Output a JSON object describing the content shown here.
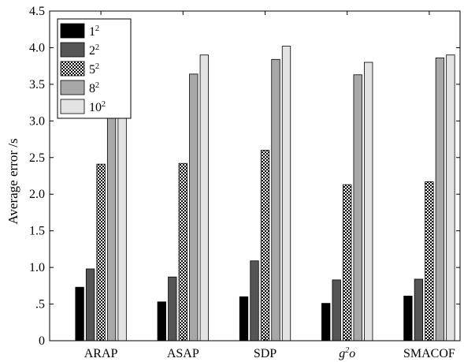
{
  "chart_data": {
    "type": "bar",
    "categories": [
      "ARAP",
      "ASAP",
      "SDP",
      "g²o",
      "SMACOF"
    ],
    "series": [
      {
        "name": "1²",
        "values": [
          0.73,
          0.53,
          0.6,
          0.51,
          0.61
        ],
        "color": "#000000",
        "pattern": "solid"
      },
      {
        "name": "2²",
        "values": [
          0.98,
          0.87,
          1.09,
          0.83,
          0.84
        ],
        "color": "#555555",
        "pattern": "solid"
      },
      {
        "name": "5²",
        "values": [
          2.41,
          2.42,
          2.6,
          2.13,
          2.17
        ],
        "color": "#ffffff",
        "pattern": "checker"
      },
      {
        "name": "8²",
        "values": [
          3.43,
          3.64,
          3.84,
          3.63,
          3.86
        ],
        "color": "#a8a8a8",
        "pattern": "solid"
      },
      {
        "name": "10²",
        "values": [
          3.81,
          3.9,
          4.02,
          3.8,
          3.9
        ],
        "color": "#e3e3e3",
        "pattern": "solid"
      }
    ],
    "title": "",
    "xlabel": "",
    "ylabel": "Average error /s",
    "ylim": [
      0,
      4.5
    ],
    "yticks": [
      "0",
      ".5",
      "1.0",
      "1.5",
      "2.0",
      "2.5",
      "3.0",
      "3.5",
      "4.0",
      "4.5"
    ],
    "ytick_values": [
      0,
      0.5,
      1.0,
      1.5,
      2.0,
      2.5,
      3.0,
      3.5,
      4.0,
      4.5
    ],
    "grid": false,
    "legend_position": "top-left"
  }
}
